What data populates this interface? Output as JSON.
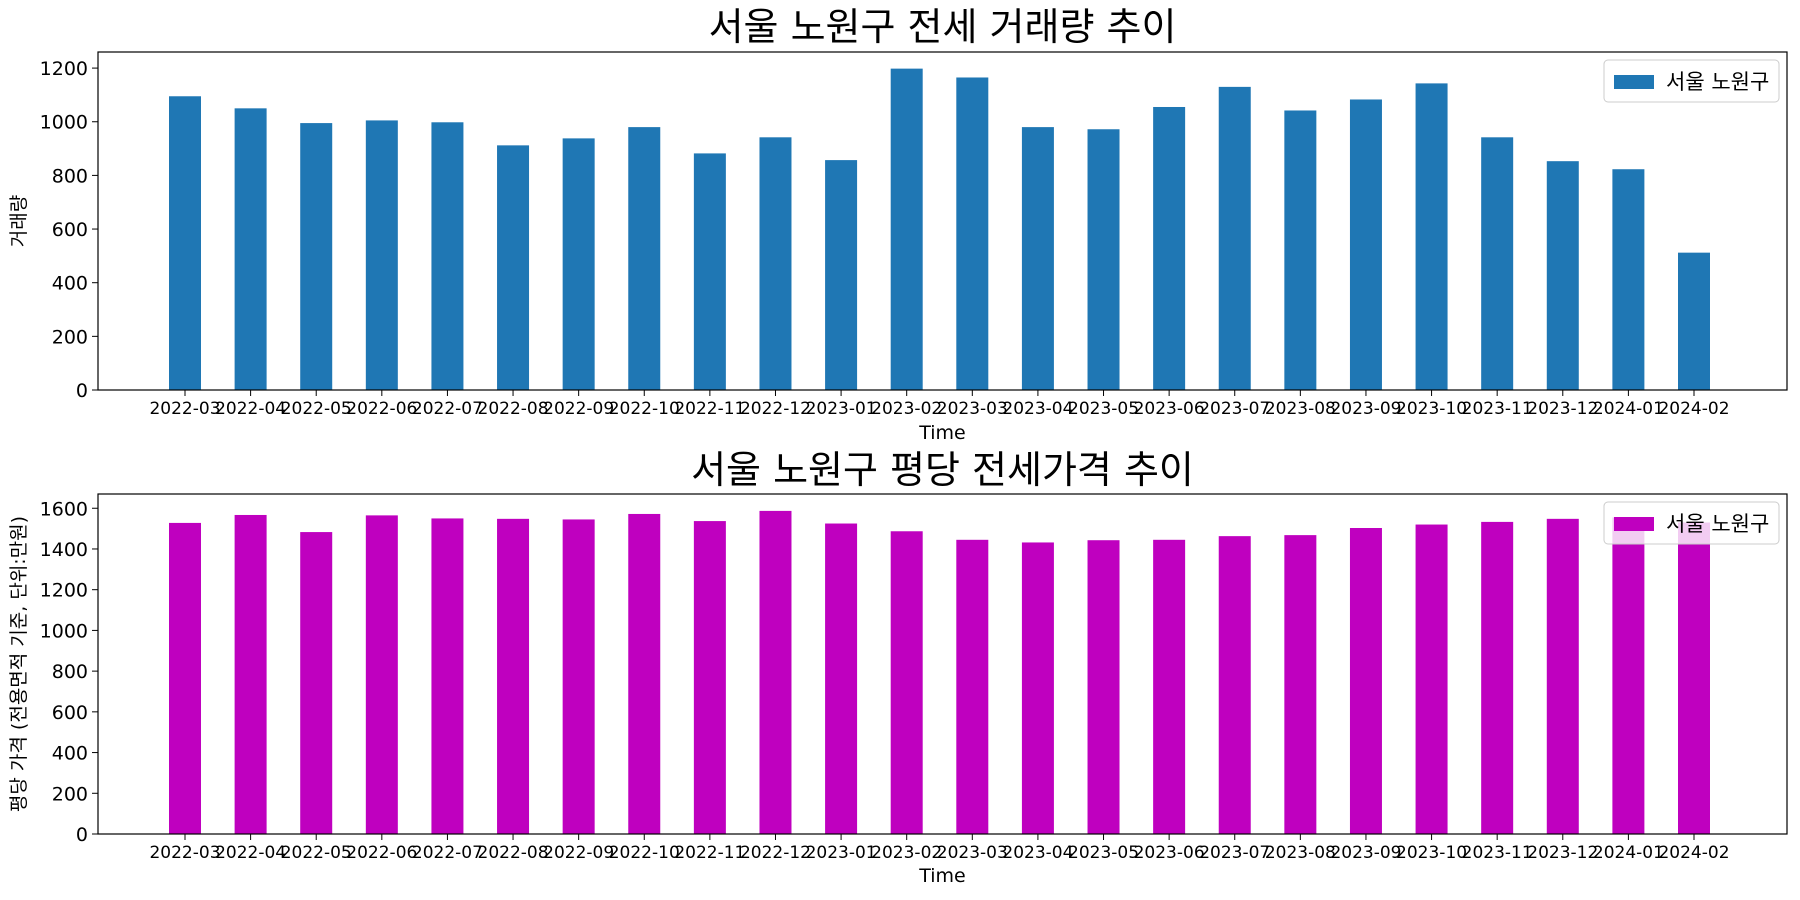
{
  "charts": [
    {
      "type": "bar",
      "title": "서울 노원구 전세 거래량 추이",
      "xlabel": "Time",
      "ylabel": "거래량",
      "categories": [
        "2022-03",
        "2022-04",
        "2022-05",
        "2022-06",
        "2022-07",
        "2022-08",
        "2022-09",
        "2022-10",
        "2022-11",
        "2022-12",
        "2023-01",
        "2023-02",
        "2023-03",
        "2023-04",
        "2023-05",
        "2023-06",
        "2023-07",
        "2023-08",
        "2023-09",
        "2023-10",
        "2023-11",
        "2023-12",
        "2024-01",
        "2024-02"
      ],
      "series": [
        {
          "name": "서울 노원구",
          "color": "#1f77b4",
          "values": [
            1095,
            1050,
            995,
            1005,
            998,
            912,
            938,
            980,
            882,
            942,
            857,
            1198,
            1165,
            980,
            972,
            1055,
            1130,
            1042,
            1083,
            1143,
            942,
            853,
            823,
            512
          ]
        }
      ],
      "ylim": [
        0,
        1260
      ],
      "yticks": [
        0,
        200,
        400,
        600,
        800,
        1000,
        1200
      ],
      "grid": false,
      "legend": "top-right"
    },
    {
      "type": "bar",
      "title": "서울 노원구 평당 전세가격 추이",
      "xlabel": "Time",
      "ylabel": "평당 가격 (전용면적 기준, 단위:만원)",
      "categories": [
        "2022-03",
        "2022-04",
        "2022-05",
        "2022-06",
        "2022-07",
        "2022-08",
        "2022-09",
        "2022-10",
        "2022-11",
        "2022-12",
        "2023-01",
        "2023-02",
        "2023-03",
        "2023-04",
        "2023-05",
        "2023-06",
        "2023-07",
        "2023-08",
        "2023-09",
        "2023-10",
        "2023-11",
        "2023-12",
        "2024-01",
        "2024-02"
      ],
      "series": [
        {
          "name": "서울 노원구",
          "color": "#bf00bf",
          "values": [
            1528,
            1567,
            1483,
            1565,
            1550,
            1548,
            1545,
            1572,
            1537,
            1587,
            1525,
            1487,
            1445,
            1432,
            1443,
            1445,
            1463,
            1468,
            1503,
            1520,
            1533,
            1548,
            1555,
            1530
          ]
        }
      ],
      "ylim": [
        0,
        1670
      ],
      "yticks": [
        0,
        200,
        400,
        600,
        800,
        1000,
        1200,
        1400,
        1600
      ],
      "grid": false,
      "legend": "top-right"
    }
  ]
}
